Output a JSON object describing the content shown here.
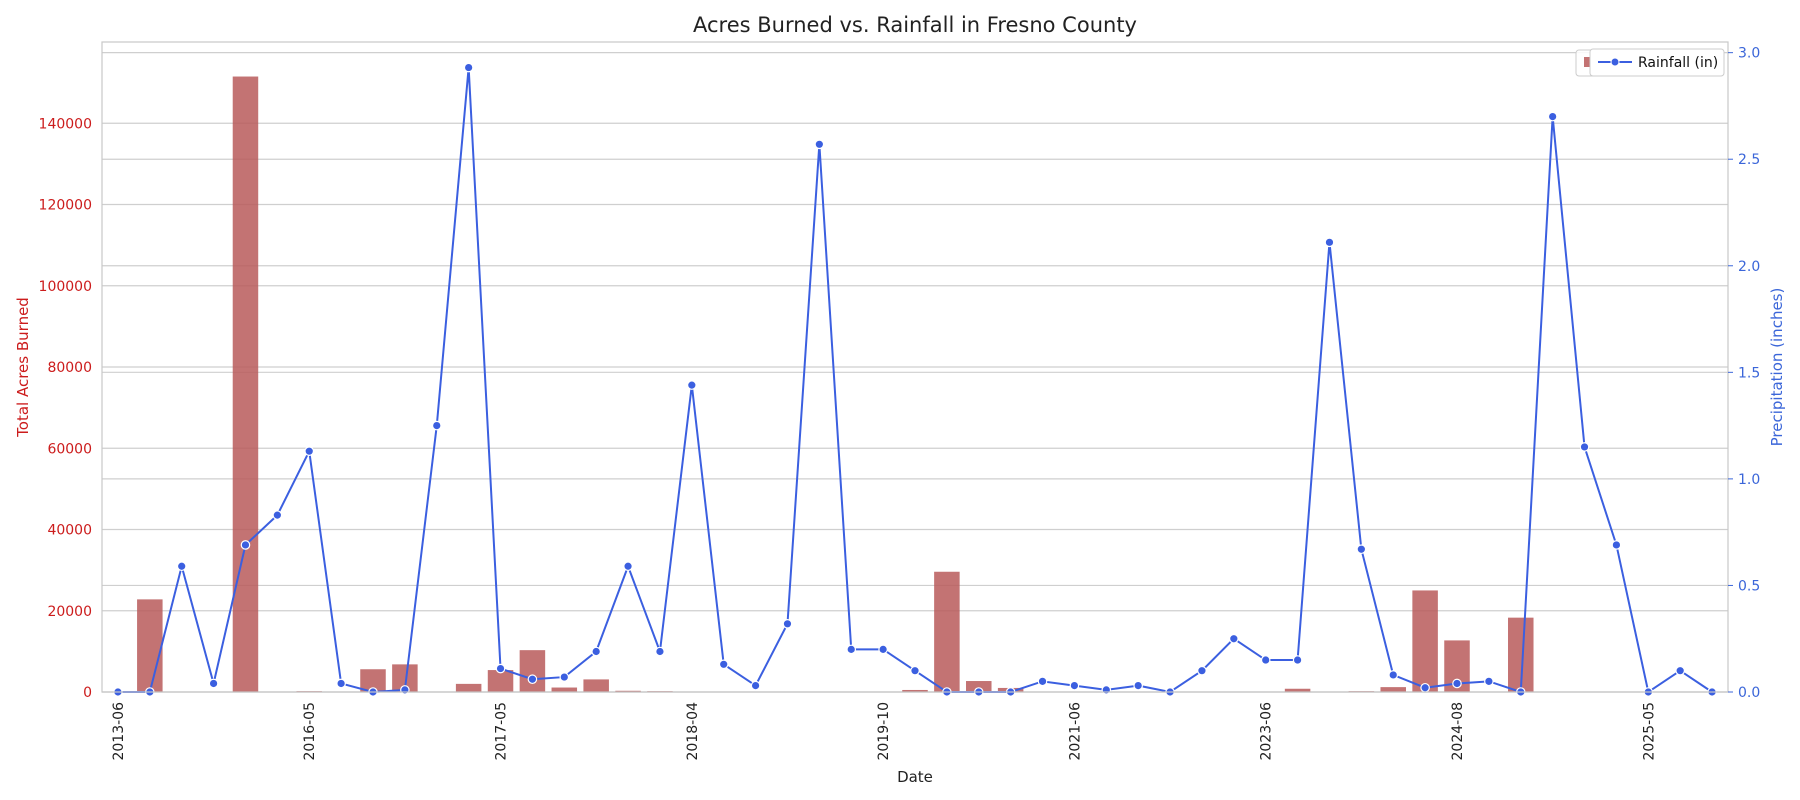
{
  "chart_data": {
    "type": "bar+line",
    "title": "Acres Burned vs. Rainfall in Fresno County",
    "xlabel": "Date",
    "ylabel_left": "Total Acres Burned",
    "ylabel_right": "Precipitation (inches)",
    "x_tick_labels": [
      "2013-06",
      "2016-05",
      "2017-05",
      "2018-04",
      "2019-10",
      "2021-06",
      "2023-06",
      "2024-08",
      "2025-05"
    ],
    "x_tick_index": [
      0,
      6,
      12,
      18,
      24,
      30,
      36,
      42,
      48
    ],
    "categories_count": 51,
    "ylim_left": [
      0,
      160000
    ],
    "yticks_left": [
      0,
      20000,
      40000,
      60000,
      80000,
      100000,
      120000,
      140000
    ],
    "ylim_right": [
      0,
      3.05
    ],
    "yticks_right": [
      "0.0",
      "0.5",
      "1.0",
      "1.5",
      "2.0",
      "2.5",
      "3.0"
    ],
    "grid": true,
    "legend_position": "top-right",
    "series": [
      {
        "name": "Acres Burned",
        "type": "bar",
        "color": "#b85a5a",
        "axis": "left",
        "values": [
          0,
          22800,
          0,
          0,
          151500,
          0,
          200,
          0,
          5600,
          6800,
          0,
          2000,
          5400,
          10300,
          1100,
          3100,
          300,
          200,
          0,
          0,
          0,
          0,
          0,
          0,
          0,
          500,
          29600,
          2700,
          1000,
          0,
          0,
          0,
          0,
          0,
          0,
          0,
          0,
          800,
          0,
          200,
          1200,
          25000,
          12700,
          0,
          18300,
          0,
          0,
          0,
          0,
          0,
          0
        ]
      },
      {
        "name": "Rainfall (in)",
        "type": "line",
        "color": "#3b5fe0",
        "axis": "right",
        "values": [
          0.0,
          0.0,
          0.59,
          0.04,
          0.69,
          0.83,
          1.13,
          0.04,
          0.0,
          0.01,
          1.25,
          2.93,
          0.11,
          0.06,
          0.07,
          0.19,
          0.59,
          0.19,
          1.44,
          0.13,
          0.03,
          0.32,
          2.57,
          0.2,
          0.2,
          0.1,
          0.0,
          0.0,
          0.0,
          0.05,
          0.03,
          0.01,
          0.03,
          0.0,
          0.1,
          0.25,
          0.15,
          0.15,
          2.11,
          0.67,
          0.08,
          0.02,
          0.04,
          0.05,
          0.0,
          2.7,
          1.15,
          0.69,
          0.0,
          0.1,
          0.0
        ]
      }
    ]
  }
}
